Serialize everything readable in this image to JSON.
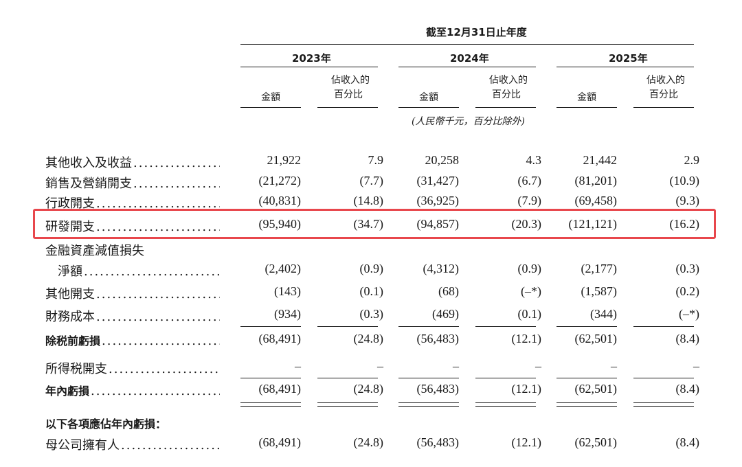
{
  "header": {
    "period_title": "截至12月31日止年度",
    "years": [
      "2023年",
      "2024年",
      "2025年"
    ],
    "col_amount": "金額",
    "col_pct_line1": "佔收入的",
    "col_pct_line2": "百分比",
    "units_note": "(人民幣千元，百分比除外)"
  },
  "dots": "................................................",
  "rows": [
    {
      "label": "其他收入及收益",
      "values": [
        "21,922",
        "7.9",
        "20,258",
        "4.3",
        "21,442",
        "2.9"
      ]
    },
    {
      "label": "銷售及營銷開支",
      "values": [
        "(21,272)",
        "(7.7)",
        "(31,427)",
        "(6.7)",
        "(81,201)",
        "(10.9)"
      ]
    },
    {
      "label": "行政開支",
      "values": [
        "(40,831)",
        "(14.8)",
        "(36,925)",
        "(7.9)",
        "(69,458)",
        "(9.3)"
      ]
    },
    {
      "label": "研發開支",
      "values": [
        "(95,940)",
        "(34.7)",
        "(94,857)",
        "(20.3)",
        "(121,121)",
        "(16.2)"
      ],
      "highlighted": true
    },
    {
      "label_line1": "金融資產減值損失",
      "label_line2": "淨額",
      "values": [
        "(2,402)",
        "(0.9)",
        "(4,312)",
        "(0.9)",
        "(2,177)",
        "(0.3)"
      ]
    },
    {
      "label": "其他開支",
      "values": [
        "(143)",
        "(0.1)",
        "(68)",
        "(–*)",
        "(1,587)",
        "(0.2)"
      ]
    },
    {
      "label": "財務成本",
      "values": [
        "(934)",
        "(0.3)",
        "(469)",
        "(0.1)",
        "(344)",
        "(–*)"
      ]
    },
    {
      "label": "除税前虧損",
      "values": [
        "(68,491)",
        "(24.8)",
        "(56,483)",
        "(12.1)",
        "(62,501)",
        "(8.4)"
      ],
      "bold": true
    },
    {
      "label": "所得税開支",
      "values": [
        "–",
        "–",
        "–",
        "–",
        "–",
        "–"
      ]
    },
    {
      "label": "年內虧損",
      "values": [
        "(68,491)",
        "(24.8)",
        "(56,483)",
        "(12.1)",
        "(62,501)",
        "(8.4)"
      ],
      "bold": true
    },
    {
      "label": "母公司擁有人",
      "values": [
        "(68,491)",
        "(24.8)",
        "(56,483)",
        "(12.1)",
        "(62,501)",
        "(8.4)"
      ]
    }
  ],
  "section_title": "以下各項應佔年內虧損：",
  "accent_color": "#e8474c"
}
